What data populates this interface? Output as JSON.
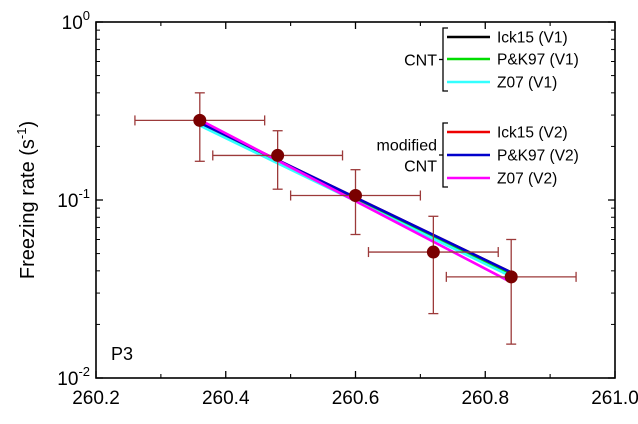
{
  "chart_data": {
    "type": "scatter",
    "panel_label": "P3",
    "xlabel": "",
    "ylabel": {
      "base": "Freezing rate (s",
      "sup": "-1",
      "close": ")"
    },
    "xlim": [
      260.2,
      261.0
    ],
    "ylim": [
      0.01,
      1.0
    ],
    "yscale": "log",
    "xticks": [
      "260.2",
      "260.4",
      "260.6",
      "260.8",
      "261.0"
    ],
    "yticks": [
      {
        "base": "10",
        "exp": "0",
        "value": 1.0
      },
      {
        "base": "10",
        "exp": "-1",
        "value": 0.1
      },
      {
        "base": "10",
        "exp": "-2",
        "value": 0.01
      }
    ],
    "measurements": {
      "color": "#7a0000",
      "error_color": "#9c3a3a",
      "points": [
        {
          "x": 260.36,
          "y": 0.28,
          "xerr": 0.1,
          "ylo": 0.165,
          "yhi": 0.4
        },
        {
          "x": 260.48,
          "y": 0.178,
          "xerr": 0.1,
          "ylo": 0.115,
          "yhi": 0.245
        },
        {
          "x": 260.6,
          "y": 0.106,
          "xerr": 0.1,
          "ylo": 0.064,
          "yhi": 0.148
        },
        {
          "x": 260.72,
          "y": 0.051,
          "xerr": 0.1,
          "ylo": 0.023,
          "yhi": 0.081
        },
        {
          "x": 260.84,
          "y": 0.037,
          "xerr": 0.1,
          "ylo": 0.0155,
          "yhi": 0.06
        }
      ]
    },
    "series": [
      {
        "name": "Ick15 (V1)",
        "group": "CNT",
        "color": "#000000",
        "x": [
          260.36,
          260.84
        ],
        "y": [
          0.268,
          0.0385
        ]
      },
      {
        "name": "P&K97 (V1)",
        "group": "CNT",
        "color": "#00dd00",
        "x": [
          260.36,
          260.84
        ],
        "y": [
          0.268,
          0.0385
        ]
      },
      {
        "name": "Z07 (V1)",
        "group": "CNT",
        "color": "#33ffff",
        "x": [
          260.36,
          260.84
        ],
        "y": [
          0.262,
          0.0372
        ]
      },
      {
        "name": "Ick15 (V2)",
        "group": "modified CNT",
        "color": "#ee0000",
        "x": [
          260.36,
          260.84
        ],
        "y": [
          0.272,
          0.0392
        ]
      },
      {
        "name": "P&K97 (V2)",
        "group": "modified CNT",
        "color": "#0000cc",
        "x": [
          260.36,
          260.84
        ],
        "y": [
          0.272,
          0.0392
        ]
      },
      {
        "name": "Z07 (V2)",
        "group": "modified CNT",
        "color": "#ff00ff",
        "x": [
          260.36,
          260.84
        ],
        "y": [
          0.282,
          0.0345
        ]
      }
    ],
    "legend": {
      "placement": "top-right",
      "groups": [
        {
          "label_lines": [
            "CNT"
          ],
          "entries": [
            "Ick15 (V1)",
            "P&K97 (V1)",
            "Z07 (V1)"
          ]
        },
        {
          "label_lines": [
            "modified",
            "CNT"
          ],
          "entries": [
            "Ick15 (V2)",
            "P&K97 (V2)",
            "Z07 (V2)"
          ]
        }
      ]
    }
  }
}
